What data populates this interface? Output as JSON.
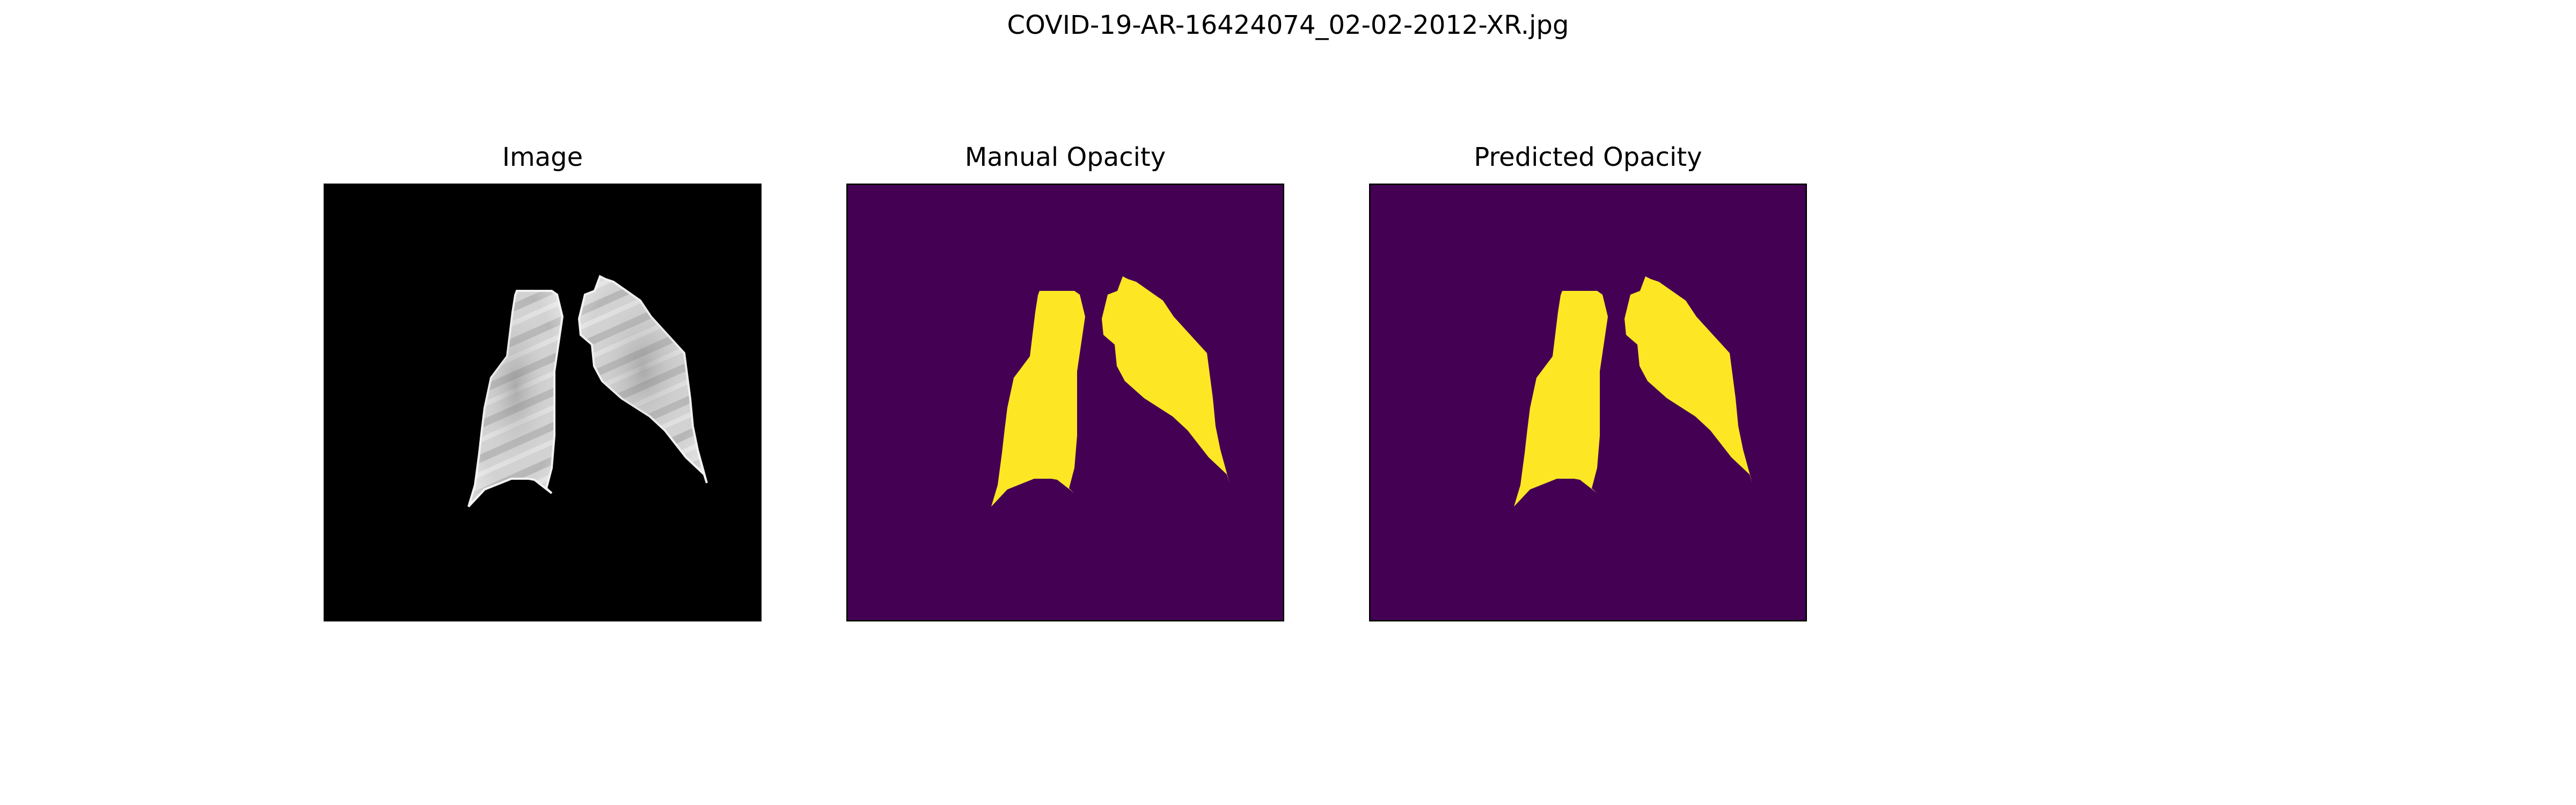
{
  "figure": {
    "suptitle": "COVID-19-AR-16424074_02-02-2012-XR.jpg"
  },
  "panels": [
    {
      "title": "Image",
      "kind": "xray"
    },
    {
      "title": "Manual Opacity",
      "kind": "mask"
    },
    {
      "title": "Predicted Opacity",
      "kind": "mask"
    }
  ],
  "colors": {
    "mask_background": "#440154",
    "mask_foreground": "#fde725",
    "xray_background": "#000000",
    "frame": "#000000"
  }
}
